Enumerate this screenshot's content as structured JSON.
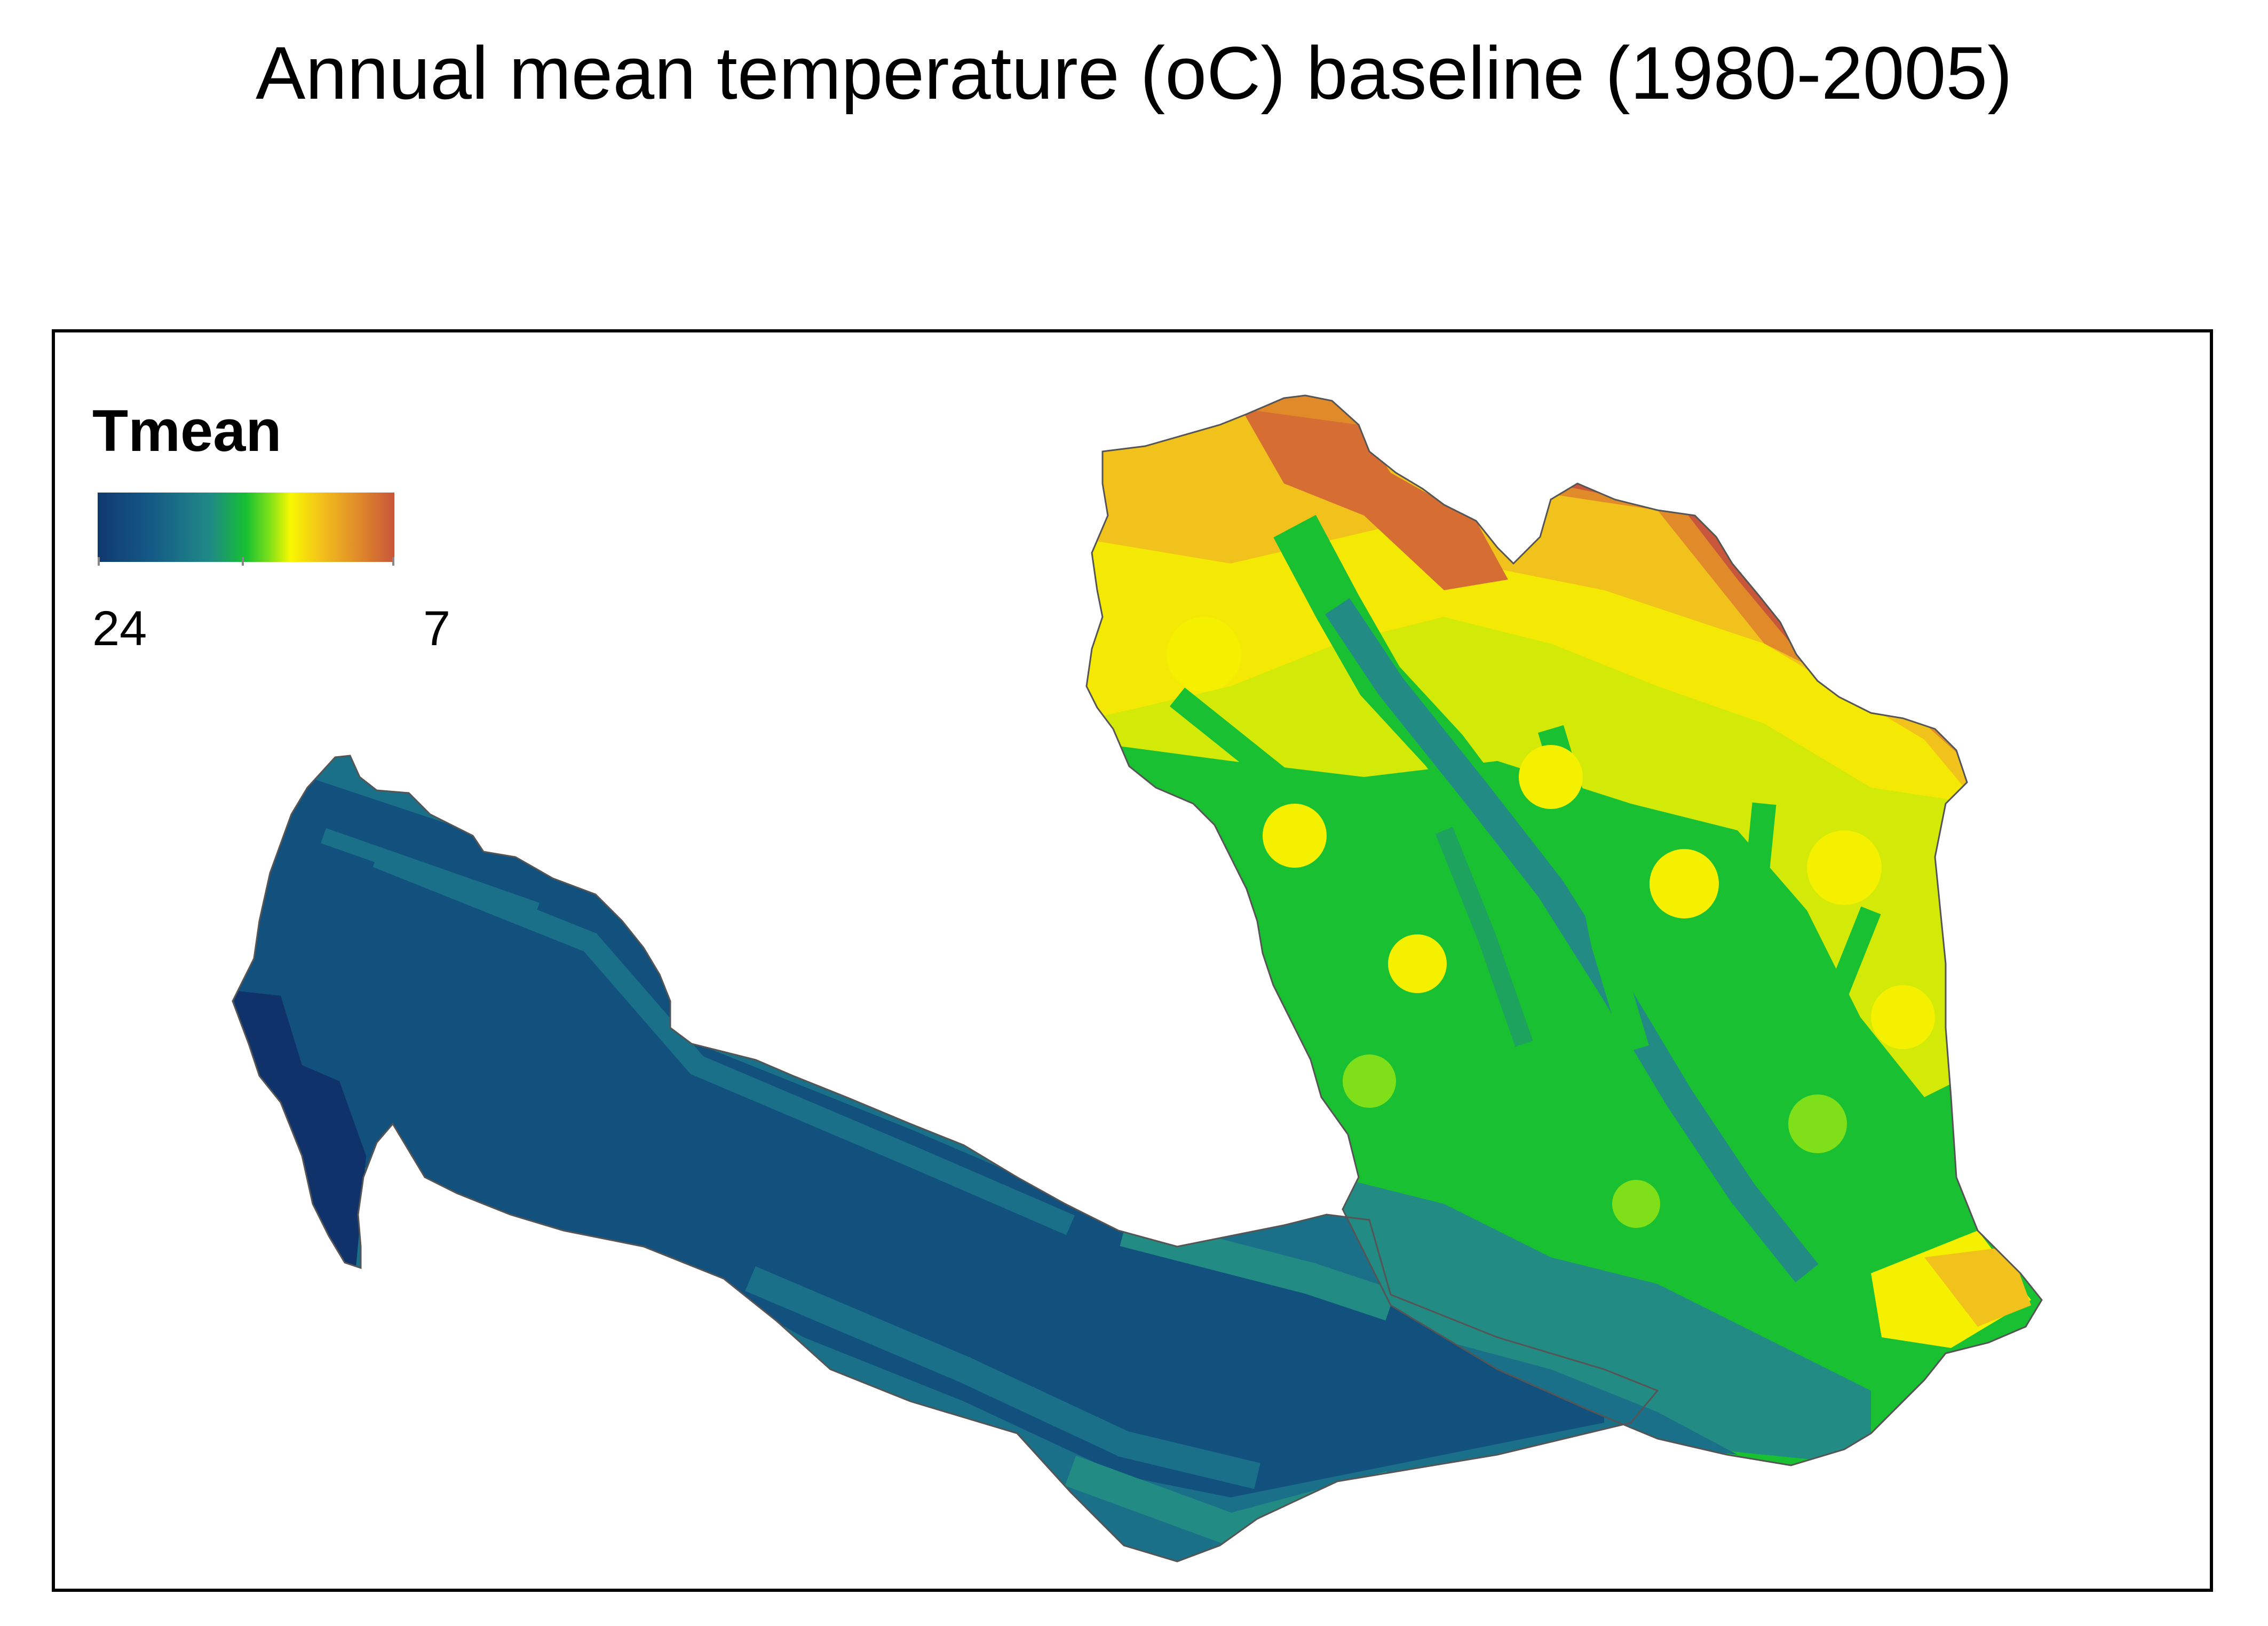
{
  "title": "Annual mean temperature (oC) baseline (1980-2005)",
  "legend": {
    "title": "Tmean",
    "min_label": "24",
    "max_label": "7",
    "min_value": 24,
    "max_value": 7,
    "colors": [
      "#10396f",
      "#145a86",
      "#1f8a86",
      "#16c032",
      "#7fe01a",
      "#f8f800",
      "#f3c21a",
      "#e08a2a",
      "#c8563a"
    ]
  },
  "map": {
    "colors": {
      "warmest": "#0f326b",
      "very_warm": "#12507e",
      "warm": "#1a7088",
      "mild": "#228c84",
      "mild_green": "#1da35e",
      "green": "#18c032",
      "light_green": "#7fe01a",
      "yellow": "#f5f000",
      "gold": "#f2c21c",
      "orange": "#e08a2a",
      "cool": "#c8563a",
      "outline": "#555555",
      "frame": "#000000"
    }
  }
}
